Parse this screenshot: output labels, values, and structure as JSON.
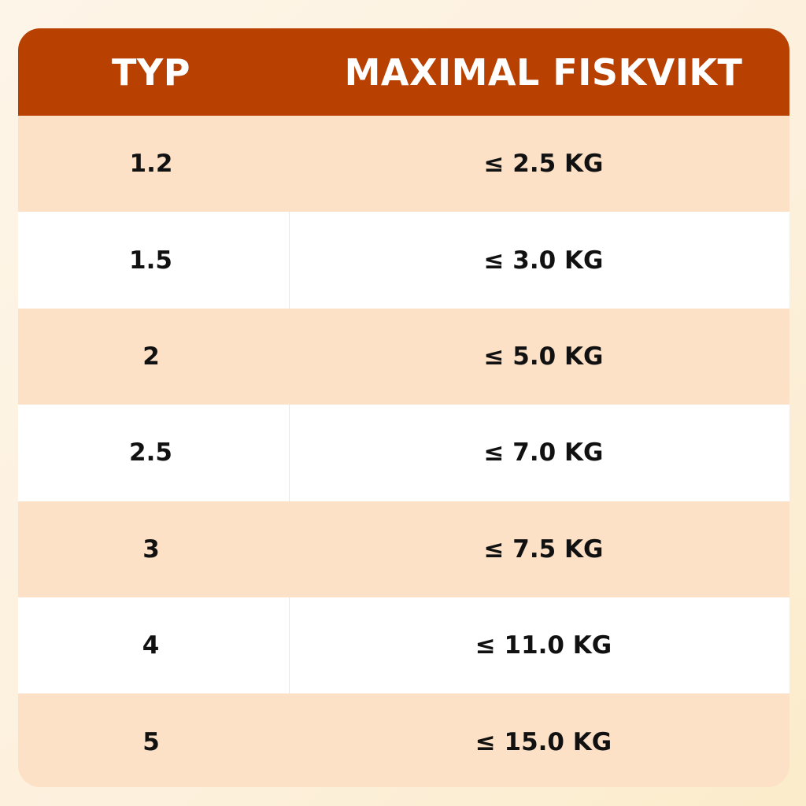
{
  "table": {
    "headers": [
      "TYP",
      "MAXIMAL FISKVIKT"
    ],
    "rows": [
      {
        "typ": "1.2",
        "max": "≤ 2.5 KG"
      },
      {
        "typ": "1.5",
        "max": "≤ 3.0 KG"
      },
      {
        "typ": "2",
        "max": "≤ 5.0 KG"
      },
      {
        "typ": "2.5",
        "max": "≤ 7.0 KG"
      },
      {
        "typ": "3",
        "max": "≤ 7.5 KG"
      },
      {
        "typ": "4",
        "max": "≤ 11.0 KG"
      },
      {
        "typ": "5",
        "max": "≤ 15.0 KG"
      }
    ]
  },
  "colors": {
    "header": "#b84000",
    "row_alt": "#fde1c6",
    "row": "#ffffff"
  }
}
